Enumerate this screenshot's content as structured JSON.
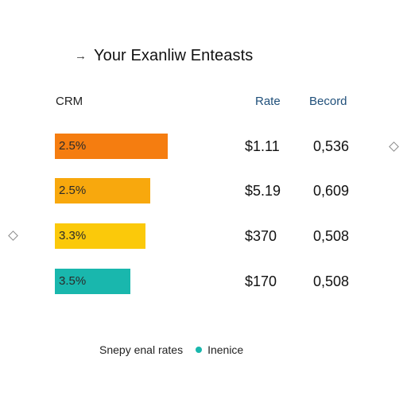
{
  "header": {
    "arrow_glyph": "→",
    "title": "Your Exanliw Enteasts"
  },
  "columns": {
    "crm": "CRM",
    "rate": "Rate",
    "record": "Becord"
  },
  "rows": [
    {
      "bar_label": "2.5%",
      "bar_fill": 0.66,
      "bar_color": "#f57d10",
      "rate": "$1.11",
      "record": "0,536"
    },
    {
      "bar_label": "2.5%",
      "bar_fill": 0.56,
      "bar_color": "#f8a80d",
      "rate": "$5.19",
      "record": "0,609"
    },
    {
      "bar_label": "3.3%",
      "bar_fill": 0.53,
      "bar_color": "#fbc90a",
      "rate": "$370",
      "record": "0,508"
    },
    {
      "bar_label": "3.5%",
      "bar_fill": 0.44,
      "bar_color": "#19b7ad",
      "rate": "$170",
      "record": "0,508"
    }
  ],
  "legend": {
    "label": "Snepy enal rates",
    "series_label": "Inenice",
    "series_color": "#19b7ad"
  },
  "decor": {
    "diamond_icon": "diamond-outline-icon"
  }
}
